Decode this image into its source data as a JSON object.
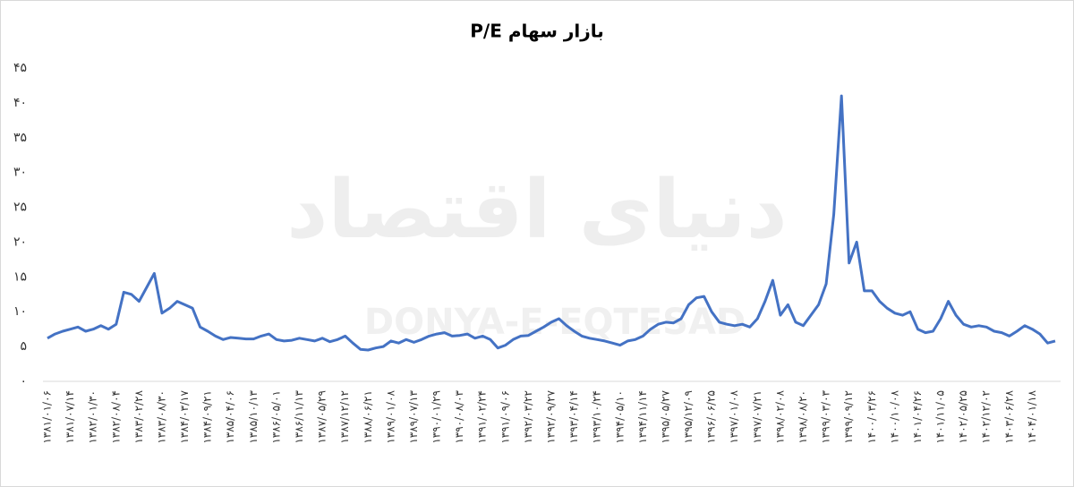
{
  "chart_data": {
    "type": "line",
    "title": "بازار سهام P/E",
    "watermark": "دنیای اقتصاد",
    "watermark_latin": "DONYA-E-EQTESAD",
    "categories": [
      "۱۳۸۱/۰۱/۰۶",
      null,
      null,
      "۱۳۸۱/۰۷/۱۴",
      null,
      null,
      "۱۳۸۲/۰۱/۳۰",
      null,
      null,
      "۱۳۸۲/۰۸/۰۴",
      null,
      null,
      "۱۳۸۳/۰۲/۲۸",
      null,
      null,
      "۱۳۸۳/۰۸/۳۰",
      null,
      null,
      "۱۳۸۴/۰۳/۱۷",
      null,
      null,
      "۱۳۸۴/۰۹/۲۱",
      null,
      null,
      "۱۳۸۵/۰۴/۰۶",
      null,
      null,
      "۱۳۸۵/۱۰/۱۳",
      null,
      null,
      "۱۳۸۶/۰۵/۰۱",
      null,
      null,
      "۱۳۸۶/۱۱/۱۳",
      null,
      null,
      "۱۳۸۷/۰۵/۲۹",
      null,
      null,
      "۱۳۸۷/۱۲/۱۲",
      null,
      null,
      "۱۳۸۸/۰۶/۲۱",
      null,
      null,
      "۱۳۸۹/۰۱/۰۸",
      null,
      null,
      "۱۳۸۹/۰۷/۱۳",
      null,
      null,
      "۱۳۹۰/۰۱/۲۹",
      null,
      null,
      "۱۳۹۰/۰۸/۰۳",
      null,
      null,
      "۱۳۹۱/۰۲/۲۴",
      null,
      null,
      "۱۳۹۱/۰۹/۰۶",
      null,
      null,
      "۱۳۹۲/۰۳/۲۲",
      null,
      null,
      "۱۳۹۲/۰۹/۲۷",
      null,
      null,
      "۱۳۹۳/۰۴/۱۴",
      null,
      null,
      "۱۳۹۳/۱۰/۲۴",
      null,
      null,
      "۱۳۹۴/۰۵/۱۰",
      null,
      null,
      "۱۳۹۴/۱۱/۱۴",
      null,
      null,
      "۱۳۹۵/۰۵/۲۷",
      null,
      null,
      "۱۳۹۵/۱۲/۰۹",
      null,
      null,
      "۱۳۹۶/۰۶/۲۵",
      null,
      null,
      "۱۳۹۷/۰۱/۰۸",
      null,
      null,
      "۱۳۹۷/۰۷/۲۱",
      null,
      null,
      "۱۳۹۸/۰۲/۰۸",
      null,
      null,
      "۱۳۹۸/۰۸/۲۰",
      null,
      null,
      "۱۳۹۹/۰۳/۰۳",
      null,
      null,
      "۱۳۹۹/۰۹/۱۲",
      null,
      null,
      "۱۴۰۰/۰۳/۲۶",
      null,
      null,
      "۱۴۰۰/۱۰/۰۸",
      null,
      null,
      "۱۴۰۱/۰۴/۲۶",
      null,
      null,
      "۱۴۰۱/۱۱/۰۵",
      null,
      null,
      "۱۴۰۲/۰۵/۲۵",
      null,
      null,
      "۱۴۰۲/۱۲/۰۲",
      null,
      null,
      "۱۴۰۳/۰۶/۲۸",
      null,
      null,
      "۱۴۰۴/۰۱/۱۸",
      null,
      null,
      null
    ],
    "series": [
      {
        "color": "#4472c4",
        "values": [
          6.2,
          6.8,
          7.2,
          7.5,
          7.8,
          7.2,
          7.5,
          8,
          7.5,
          8.2,
          12.8,
          12.5,
          11.5,
          13.5,
          15.5,
          9.8,
          10.5,
          11.5,
          11,
          10.5,
          7.8,
          7.2,
          6.5,
          6,
          6.3,
          6.2,
          6.1,
          6.1,
          6.5,
          6.8,
          6,
          5.8,
          5.9,
          6.2,
          6,
          5.8,
          6.2,
          5.7,
          6,
          6.5,
          5.5,
          4.6,
          4.5,
          4.8,
          5,
          5.8,
          5.5,
          6,
          5.6,
          6,
          6.5,
          6.8,
          7,
          6.5,
          6.6,
          6.8,
          6.2,
          6.5,
          6,
          4.8,
          5.2,
          6,
          6.5,
          6.6,
          7.2,
          7.8,
          8.5,
          9,
          8,
          7.2,
          6.5,
          6.2,
          6,
          5.8,
          5.5,
          5.2,
          5.8,
          6,
          6.5,
          7.5,
          8.2,
          8.5,
          8.4,
          9,
          11,
          12,
          12.2,
          10,
          8.5,
          8.2,
          8,
          8.2,
          7.8,
          9,
          11.5,
          14.5,
          9.5,
          11,
          8.5,
          8,
          9.5,
          11,
          14,
          24,
          41,
          17,
          20,
          13,
          13,
          11.5,
          10.5,
          9.8,
          9.5,
          10,
          7.5,
          7,
          7.2,
          9,
          11.5,
          9.5,
          8.2,
          7.8,
          8,
          7.8,
          7.2,
          7,
          6.5,
          7.2,
          8,
          7.5,
          6.8,
          5.5,
          5.8
        ]
      }
    ],
    "ylim": [
      0,
      45
    ],
    "yticks": [
      {
        "value": 0,
        "label": "۰"
      },
      {
        "value": 5,
        "label": "۵"
      },
      {
        "value": 10,
        "label": "۱۰"
      },
      {
        "value": 15,
        "label": "۱۵"
      },
      {
        "value": 20,
        "label": "۲۰"
      },
      {
        "value": 25,
        "label": "۲۵"
      },
      {
        "value": 30,
        "label": "۳۰"
      },
      {
        "value": 35,
        "label": "۳۵"
      },
      {
        "value": 40,
        "label": "۴۰"
      },
      {
        "value": 45,
        "label": "۴۵"
      }
    ],
    "grid": false
  }
}
